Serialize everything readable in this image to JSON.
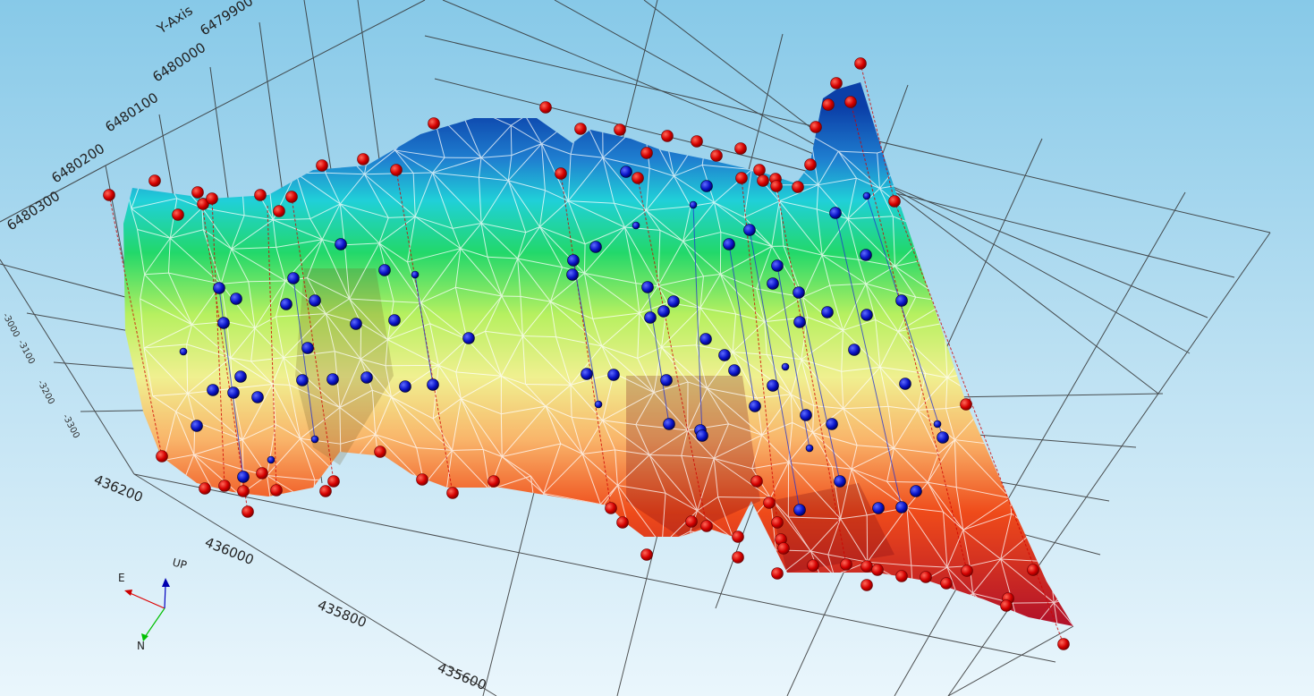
{
  "viewer": {
    "y_axis": {
      "title": "Y-Axis",
      "ticks": [
        "6480300",
        "6480200",
        "6480100",
        "6480000",
        "6479900"
      ]
    },
    "x_axis": {
      "ticks": [
        "436200",
        "436000",
        "435800",
        "435600"
      ]
    },
    "z_axis": {
      "ticks": [
        "-3000",
        "-3100",
        "-3200",
        "-3300"
      ]
    },
    "compass": {
      "east": "E",
      "up": "UP",
      "north": "N"
    },
    "colors": {
      "surface_ramp": [
        "#0b3fa8",
        "#1f7fd0",
        "#20d0d8",
        "#22d86a",
        "#b7f060",
        "#f0f090",
        "#f9b56a",
        "#ef4b1a",
        "#b0102a"
      ],
      "collar_marker": "#d40000",
      "intersection_marker": "#0a14c8",
      "mesh": "#ffffff",
      "grid": "#333333"
    },
    "surface_kind": "triangulated-surface"
  }
}
